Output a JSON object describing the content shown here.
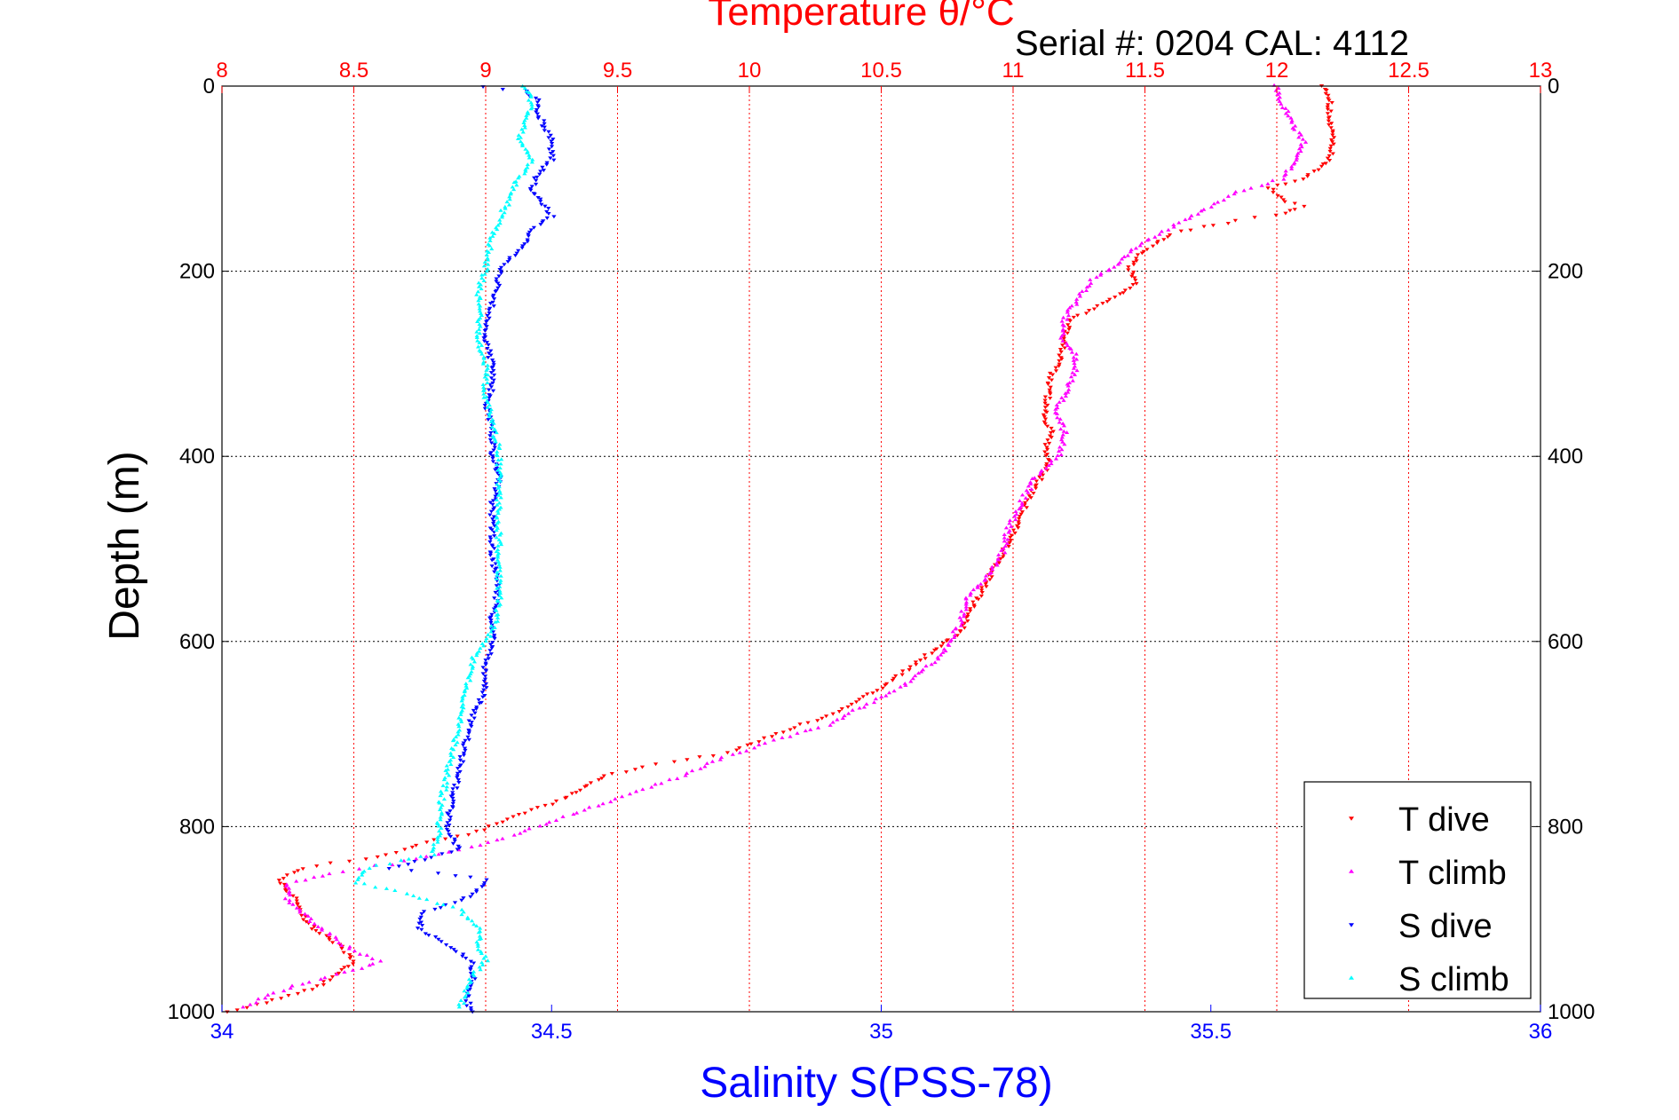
{
  "chart_data": {
    "type": "scatter",
    "title": "Temperature θ/°C",
    "subtitle": "Serial #: 0204  CAL: 4112",
    "xlabel": "Salinity S(PSS-78)",
    "ylabel": "Depth (m)",
    "ylim": [
      1000,
      0
    ],
    "y_reversed": true,
    "x_top": {
      "label": "Temperature θ/°C",
      "lim": [
        8,
        13
      ],
      "ticks": [
        8,
        8.5,
        9,
        9.5,
        10,
        10.5,
        11,
        11.5,
        12,
        12.5,
        13
      ],
      "color": "#ff0000"
    },
    "x_bottom": {
      "label": "Salinity S(PSS-78)",
      "lim": [
        34,
        36
      ],
      "ticks": [
        34,
        34.5,
        35,
        35.5,
        36
      ],
      "color": "#0000ff"
    },
    "y_ticks": [
      0,
      200,
      400,
      600,
      800,
      1000
    ],
    "grid": true,
    "legend_position": "bottom-right",
    "series": [
      {
        "name": "T dive",
        "axis": "top",
        "color": "#ff0000",
        "marker": "triangle-down",
        "points": [
          [
            12.18,
            0
          ],
          [
            12.2,
            10
          ],
          [
            12.2,
            25
          ],
          [
            12.2,
            40
          ],
          [
            12.21,
            60
          ],
          [
            12.2,
            80
          ],
          [
            12.1,
            100
          ],
          [
            11.97,
            110
          ],
          [
            12.04,
            125
          ],
          [
            12.1,
            130
          ],
          [
            12.0,
            140
          ],
          [
            11.85,
            145
          ],
          [
            11.72,
            152
          ],
          [
            11.6,
            160
          ],
          [
            11.5,
            178
          ],
          [
            11.44,
            195
          ],
          [
            11.47,
            210
          ],
          [
            11.41,
            225
          ],
          [
            11.3,
            240
          ],
          [
            11.22,
            252
          ],
          [
            11.2,
            270
          ],
          [
            11.17,
            300
          ],
          [
            11.14,
            315
          ],
          [
            11.13,
            340
          ],
          [
            11.12,
            360
          ],
          [
            11.15,
            375
          ],
          [
            11.12,
            395
          ],
          [
            11.13,
            410
          ],
          [
            11.05,
            450
          ],
          [
            11.0,
            485
          ],
          [
            10.93,
            520
          ],
          [
            10.86,
            555
          ],
          [
            10.8,
            590
          ],
          [
            10.72,
            605
          ],
          [
            10.6,
            630
          ],
          [
            10.47,
            655
          ],
          [
            10.3,
            680
          ],
          [
            10.1,
            700
          ],
          [
            9.92,
            720
          ],
          [
            9.6,
            735
          ],
          [
            9.45,
            745
          ],
          [
            9.3,
            770
          ],
          [
            9.15,
            785
          ],
          [
            9.02,
            800
          ],
          [
            8.94,
            808
          ],
          [
            8.8,
            815
          ],
          [
            8.6,
            832
          ],
          [
            8.3,
            845
          ],
          [
            8.22,
            858
          ],
          [
            8.28,
            880
          ],
          [
            8.3,
            895
          ],
          [
            8.35,
            910
          ],
          [
            8.45,
            930
          ],
          [
            8.5,
            945
          ],
          [
            8.43,
            960
          ],
          [
            8.35,
            975
          ],
          [
            8.22,
            985
          ],
          [
            8.1,
            995
          ],
          [
            8.02,
            1000
          ]
        ]
      },
      {
        "name": "T climb",
        "axis": "top",
        "color": "#ff00ff",
        "marker": "triangle-up",
        "points": [
          [
            12.0,
            0
          ],
          [
            12.02,
            20
          ],
          [
            12.06,
            40
          ],
          [
            12.1,
            60
          ],
          [
            12.08,
            80
          ],
          [
            12.02,
            100
          ],
          [
            11.85,
            115
          ],
          [
            11.75,
            130
          ],
          [
            11.55,
            160
          ],
          [
            11.44,
            180
          ],
          [
            11.38,
            195
          ],
          [
            11.3,
            210
          ],
          [
            11.25,
            228
          ],
          [
            11.2,
            250
          ],
          [
            11.18,
            270
          ],
          [
            11.23,
            290
          ],
          [
            11.24,
            305
          ],
          [
            11.2,
            330
          ],
          [
            11.16,
            355
          ],
          [
            11.2,
            375
          ],
          [
            11.17,
            400
          ],
          [
            11.08,
            425
          ],
          [
            11.02,
            455
          ],
          [
            10.98,
            480
          ],
          [
            10.96,
            505
          ],
          [
            10.92,
            525
          ],
          [
            10.83,
            550
          ],
          [
            10.8,
            580
          ],
          [
            10.73,
            615
          ],
          [
            10.6,
            645
          ],
          [
            10.45,
            668
          ],
          [
            10.3,
            690
          ],
          [
            10.12,
            705
          ],
          [
            9.9,
            725
          ],
          [
            9.75,
            745
          ],
          [
            9.55,
            765
          ],
          [
            9.3,
            790
          ],
          [
            9.1,
            810
          ],
          [
            8.95,
            822
          ],
          [
            8.7,
            838
          ],
          [
            8.45,
            848
          ],
          [
            8.25,
            862
          ],
          [
            8.25,
            880
          ],
          [
            8.32,
            897
          ],
          [
            8.4,
            915
          ],
          [
            8.5,
            935
          ],
          [
            8.6,
            945
          ],
          [
            8.5,
            955
          ],
          [
            8.3,
            970
          ],
          [
            8.18,
            982
          ],
          [
            8.08,
            995
          ]
        ]
      },
      {
        "name": "S dive",
        "axis": "bottom",
        "color": "#0000ff",
        "marker": "triangle-down",
        "points": [
          [
            34.4,
            0
          ],
          [
            34.46,
            5
          ],
          [
            34.48,
            15
          ],
          [
            34.48,
            30
          ],
          [
            34.5,
            60
          ],
          [
            34.5,
            80
          ],
          [
            34.48,
            95
          ],
          [
            34.47,
            110
          ],
          [
            34.49,
            130
          ],
          [
            34.5,
            140
          ],
          [
            34.47,
            155
          ],
          [
            34.45,
            180
          ],
          [
            34.42,
            195
          ],
          [
            34.42,
            215
          ],
          [
            34.41,
            235
          ],
          [
            34.4,
            255
          ],
          [
            34.4,
            275
          ],
          [
            34.41,
            300
          ],
          [
            34.41,
            325
          ],
          [
            34.4,
            345
          ],
          [
            34.41,
            370
          ],
          [
            34.41,
            395
          ],
          [
            34.42,
            425
          ],
          [
            34.41,
            450
          ],
          [
            34.41,
            480
          ],
          [
            34.41,
            510
          ],
          [
            34.42,
            540
          ],
          [
            34.41,
            575
          ],
          [
            34.41,
            600
          ],
          [
            34.4,
            625
          ],
          [
            34.4,
            650
          ],
          [
            34.38,
            680
          ],
          [
            34.37,
            710
          ],
          [
            34.36,
            740
          ],
          [
            34.35,
            770
          ],
          [
            34.34,
            800
          ],
          [
            34.36,
            825
          ],
          [
            34.28,
            840
          ],
          [
            34.25,
            845
          ],
          [
            34.33,
            850
          ],
          [
            34.4,
            858
          ],
          [
            34.38,
            875
          ],
          [
            34.3,
            895
          ],
          [
            34.3,
            912
          ],
          [
            34.35,
            930
          ],
          [
            34.38,
            948
          ],
          [
            34.38,
            965
          ],
          [
            34.37,
            985
          ],
          [
            34.38,
            1000
          ]
        ]
      },
      {
        "name": "S climb",
        "axis": "bottom",
        "color": "#00ffff",
        "marker": "triangle-up",
        "points": [
          [
            34.46,
            0
          ],
          [
            34.47,
            20
          ],
          [
            34.46,
            40
          ],
          [
            34.45,
            60
          ],
          [
            34.47,
            80
          ],
          [
            34.45,
            100
          ],
          [
            34.43,
            130
          ],
          [
            34.41,
            160
          ],
          [
            34.4,
            195
          ],
          [
            34.39,
            220
          ],
          [
            34.39,
            250
          ],
          [
            34.39,
            280
          ],
          [
            34.4,
            305
          ],
          [
            34.4,
            335
          ],
          [
            34.41,
            360
          ],
          [
            34.42,
            395
          ],
          [
            34.42,
            430
          ],
          [
            34.42,
            460
          ],
          [
            34.42,
            495
          ],
          [
            34.42,
            525
          ],
          [
            34.42,
            560
          ],
          [
            34.41,
            590
          ],
          [
            34.38,
            620
          ],
          [
            34.37,
            655
          ],
          [
            34.36,
            690
          ],
          [
            34.35,
            720
          ],
          [
            34.34,
            750
          ],
          [
            34.33,
            780
          ],
          [
            34.33,
            805
          ],
          [
            34.32,
            830
          ],
          [
            34.22,
            845
          ],
          [
            34.2,
            860
          ],
          [
            34.28,
            872
          ],
          [
            34.36,
            890
          ],
          [
            34.39,
            910
          ],
          [
            34.39,
            930
          ],
          [
            34.4,
            945
          ],
          [
            34.38,
            962
          ],
          [
            34.37,
            980
          ],
          [
            34.36,
            995
          ]
        ]
      }
    ]
  }
}
